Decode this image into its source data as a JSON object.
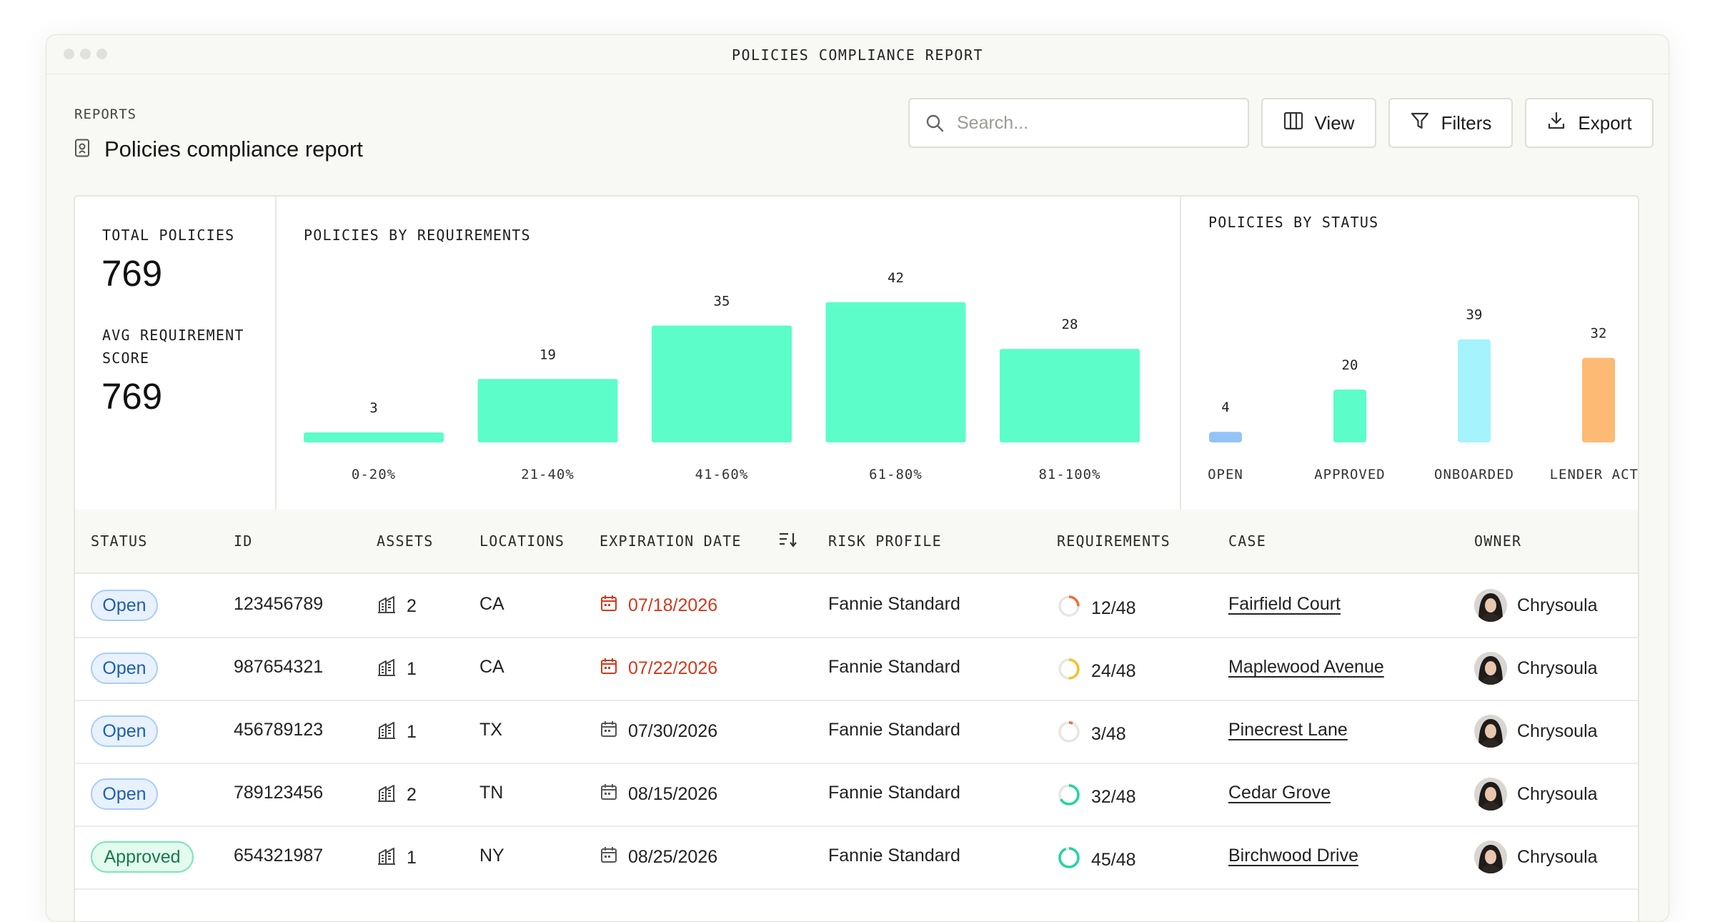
{
  "window": {
    "title": "POLICIES COMPLIANCE REPORT"
  },
  "header": {
    "breadcrumb": "REPORTS",
    "title": "Policies compliance report",
    "search_placeholder": "Search...",
    "view_label": "View",
    "filters_label": "Filters",
    "export_label": "Export"
  },
  "stats": {
    "total_label": "TOTAL POLICIES",
    "total_value": "769",
    "avg_label_line1": "AVG REQUIREMENT",
    "avg_label_line2": "SCORE",
    "avg_value": "769"
  },
  "chart_data": [
    {
      "type": "bar",
      "title": "POLICIES BY REQUIREMENTS",
      "categories": [
        "0-20%",
        "21-40%",
        "41-60%",
        "61-80%",
        "81-100%"
      ],
      "values": [
        3,
        19,
        35,
        42,
        28
      ],
      "color": "#5cfdc9"
    },
    {
      "type": "bar",
      "title": "POLICIES BY STATUS",
      "categories": [
        "OPEN",
        "APPROVED",
        "ONBOARDED",
        "LENDER ACTI"
      ],
      "values": [
        4,
        20,
        39,
        32
      ],
      "colors": [
        "#94c3f7",
        "#5cfdc9",
        "#a5f3fc",
        "#fdba74"
      ]
    }
  ],
  "table": {
    "columns": {
      "status": "STATUS",
      "id": "ID",
      "assets": "ASSETS",
      "locations": "LOCATIONS",
      "expiration": "EXPIRATION DATE",
      "risk": "RISK PROFILE",
      "requirements": "REQUIREMENTS",
      "case": "CASE",
      "owner": "OWNER"
    },
    "rows": [
      {
        "status": "Open",
        "status_type": "open",
        "id": "123456789",
        "assets": "2",
        "location": "CA",
        "expiration": "07/18/2026",
        "expiring": true,
        "risk": "Fannie Standard",
        "req": "12/48",
        "req_done": 12,
        "req_total": 48,
        "req_color": "#f26b3a",
        "case": "Fairfield Court",
        "owner": "Chrysoula"
      },
      {
        "status": "Open",
        "status_type": "open",
        "id": "987654321",
        "assets": "1",
        "location": "CA",
        "expiration": "07/22/2026",
        "expiring": true,
        "risk": "Fannie Standard",
        "req": "24/48",
        "req_done": 24,
        "req_total": 48,
        "req_color": "#fbbf24",
        "case": "Maplewood Avenue",
        "owner": "Chrysoula"
      },
      {
        "status": "Open",
        "status_type": "open",
        "id": "456789123",
        "assets": "1",
        "location": "TX",
        "expiration": "07/30/2026",
        "expiring": false,
        "risk": "Fannie Standard",
        "req": "3/48",
        "req_done": 3,
        "req_total": 48,
        "req_color": "#f26b3a",
        "case": "Pinecrest Lane",
        "owner": "Chrysoula"
      },
      {
        "status": "Open",
        "status_type": "open",
        "id": "789123456",
        "assets": "2",
        "location": "TN",
        "expiration": "08/15/2026",
        "expiring": false,
        "risk": "Fannie Standard",
        "req": "32/48",
        "req_done": 32,
        "req_total": 48,
        "req_color": "#1ed6a0",
        "case": "Cedar Grove",
        "owner": "Chrysoula"
      },
      {
        "status": "Approved",
        "status_type": "approved",
        "id": "654321987",
        "assets": "1",
        "location": "NY",
        "expiration": "08/25/2026",
        "expiring": false,
        "risk": "Fannie Standard",
        "req": "45/48",
        "req_done": 45,
        "req_total": 48,
        "req_color": "#1ed6a0",
        "case": "Birchwood Drive",
        "owner": "Chrysoula"
      }
    ]
  }
}
